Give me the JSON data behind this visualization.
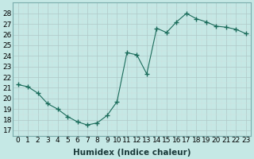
{
  "x": [
    0,
    1,
    2,
    3,
    4,
    5,
    6,
    7,
    8,
    9,
    10,
    11,
    12,
    13,
    14,
    15,
    16,
    17,
    18,
    19,
    20,
    21,
    22,
    23
  ],
  "y": [
    21.3,
    21.1,
    20.5,
    19.5,
    19.0,
    18.3,
    17.8,
    17.5,
    17.7,
    18.4,
    19.7,
    24.3,
    24.1,
    22.3,
    26.6,
    26.2,
    27.2,
    28.0,
    27.5,
    27.2,
    26.8,
    26.7,
    26.5,
    26.1
  ],
  "line_color": "#1a6b5a",
  "marker": "+",
  "marker_size": 4,
  "bg_color": "#c5e8e5",
  "grid_major_color": "#b0c8c8",
  "grid_minor_color": "#d0e0e0",
  "xlabel": "Humidex (Indice chaleur)",
  "ylim": [
    17,
    29
  ],
  "xlim": [
    -0.5,
    23.5
  ],
  "yticks": [
    17,
    18,
    19,
    20,
    21,
    22,
    23,
    24,
    25,
    26,
    27,
    28
  ],
  "xticks": [
    0,
    1,
    2,
    3,
    4,
    5,
    6,
    7,
    8,
    9,
    10,
    11,
    12,
    13,
    14,
    15,
    16,
    17,
    18,
    19,
    20,
    21,
    22,
    23
  ],
  "xlabel_fontsize": 7.5,
  "tick_fontsize": 6.5,
  "linewidth": 0.8,
  "marker_linewidth": 1.0
}
